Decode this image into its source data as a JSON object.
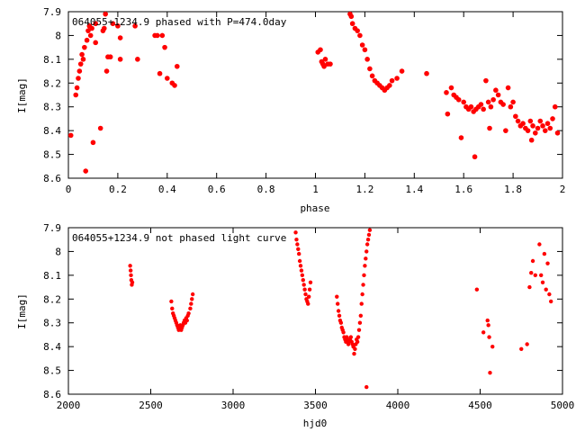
{
  "chart_data": [
    {
      "type": "scatter",
      "title": "064055+1234.9 phased with P=474.0day",
      "xlabel": "phase",
      "ylabel": "I[mag]",
      "xlim": [
        0,
        2
      ],
      "ylim": [
        8.6,
        7.9
      ],
      "y_axis_inverted": true,
      "xticks": [
        "0",
        "0.2",
        "0.4",
        "0.6",
        "0.8",
        "1",
        "1.2",
        "1.4",
        "1.6",
        "1.8",
        "2"
      ],
      "yticks": [
        "7.9",
        "8",
        "8.1",
        "8.2",
        "8.3",
        "8.4",
        "8.5",
        "8.6"
      ],
      "marker_color": "#ff0000",
      "grid": false,
      "points": [
        [
          0.01,
          8.42
        ],
        [
          0.03,
          8.25
        ],
        [
          0.035,
          8.22
        ],
        [
          0.04,
          8.18
        ],
        [
          0.045,
          8.15
        ],
        [
          0.05,
          8.12
        ],
        [
          0.055,
          8.08
        ],
        [
          0.06,
          8.1
        ],
        [
          0.065,
          8.05
        ],
        [
          0.07,
          8.57
        ],
        [
          0.075,
          8.02
        ],
        [
          0.08,
          7.98
        ],
        [
          0.085,
          7.96
        ],
        [
          0.09,
          8.0
        ],
        [
          0.095,
          7.97
        ],
        [
          0.1,
          8.45
        ],
        [
          0.11,
          7.95
        ],
        [
          0.11,
          8.03
        ],
        [
          0.13,
          8.39
        ],
        [
          0.14,
          7.98
        ],
        [
          0.145,
          7.97
        ],
        [
          0.15,
          7.91
        ],
        [
          0.155,
          8.15
        ],
        [
          0.16,
          8.09
        ],
        [
          0.17,
          8.09
        ],
        [
          0.18,
          7.95
        ],
        [
          0.2,
          7.96
        ],
        [
          0.21,
          8.01
        ],
        [
          0.21,
          8.1
        ],
        [
          0.27,
          7.96
        ],
        [
          0.28,
          8.1
        ],
        [
          0.35,
          8.0
        ],
        [
          0.36,
          8.0
        ],
        [
          0.37,
          8.16
        ],
        [
          0.38,
          8.0
        ],
        [
          0.39,
          8.05
        ],
        [
          0.4,
          8.18
        ],
        [
          0.42,
          8.2
        ],
        [
          0.43,
          8.21
        ],
        [
          0.44,
          8.13
        ],
        [
          1.01,
          8.07
        ],
        [
          1.02,
          8.06
        ],
        [
          1.025,
          8.11
        ],
        [
          1.03,
          8.12
        ],
        [
          1.035,
          8.13
        ],
        [
          1.04,
          8.1
        ],
        [
          1.05,
          8.12
        ],
        [
          1.06,
          8.12
        ],
        [
          1.14,
          7.91
        ],
        [
          1.145,
          7.92
        ],
        [
          1.15,
          7.95
        ],
        [
          1.16,
          7.97
        ],
        [
          1.17,
          7.98
        ],
        [
          1.18,
          8.0
        ],
        [
          1.19,
          8.04
        ],
        [
          1.2,
          8.06
        ],
        [
          1.21,
          8.1
        ],
        [
          1.22,
          8.14
        ],
        [
          1.23,
          8.17
        ],
        [
          1.24,
          8.19
        ],
        [
          1.25,
          8.2
        ],
        [
          1.26,
          8.21
        ],
        [
          1.27,
          8.22
        ],
        [
          1.28,
          8.23
        ],
        [
          1.29,
          8.22
        ],
        [
          1.3,
          8.21
        ],
        [
          1.31,
          8.19
        ],
        [
          1.33,
          8.18
        ],
        [
          1.35,
          8.15
        ],
        [
          1.45,
          8.16
        ],
        [
          1.53,
          8.24
        ],
        [
          1.535,
          8.33
        ],
        [
          1.55,
          8.22
        ],
        [
          1.56,
          8.25
        ],
        [
          1.57,
          8.26
        ],
        [
          1.58,
          8.27
        ],
        [
          1.59,
          8.43
        ],
        [
          1.6,
          8.28
        ],
        [
          1.61,
          8.3
        ],
        [
          1.62,
          8.31
        ],
        [
          1.63,
          8.3
        ],
        [
          1.64,
          8.32
        ],
        [
          1.645,
          8.51
        ],
        [
          1.65,
          8.31
        ],
        [
          1.66,
          8.3
        ],
        [
          1.67,
          8.29
        ],
        [
          1.68,
          8.31
        ],
        [
          1.69,
          8.19
        ],
        [
          1.7,
          8.28
        ],
        [
          1.705,
          8.39
        ],
        [
          1.71,
          8.3
        ],
        [
          1.72,
          8.27
        ],
        [
          1.73,
          8.23
        ],
        [
          1.74,
          8.25
        ],
        [
          1.75,
          8.28
        ],
        [
          1.76,
          8.29
        ],
        [
          1.77,
          8.4
        ],
        [
          1.78,
          8.22
        ],
        [
          1.79,
          8.3
        ],
        [
          1.8,
          8.28
        ],
        [
          1.81,
          8.34
        ],
        [
          1.82,
          8.36
        ],
        [
          1.83,
          8.38
        ],
        [
          1.84,
          8.37
        ],
        [
          1.85,
          8.39
        ],
        [
          1.86,
          8.4
        ],
        [
          1.87,
          8.36
        ],
        [
          1.875,
          8.44
        ],
        [
          1.88,
          8.38
        ],
        [
          1.89,
          8.41
        ],
        [
          1.9,
          8.39
        ],
        [
          1.91,
          8.36
        ],
        [
          1.92,
          8.38
        ],
        [
          1.93,
          8.4
        ],
        [
          1.94,
          8.37
        ],
        [
          1.95,
          8.39
        ],
        [
          1.96,
          8.35
        ],
        [
          1.97,
          8.3
        ],
        [
          1.98,
          8.41
        ]
      ]
    },
    {
      "type": "scatter",
      "title": "064055+1234.9 not phased light curve",
      "xlabel": "hjd0",
      "ylabel": "I[mag]",
      "xlim": [
        2000,
        5000
      ],
      "ylim": [
        8.6,
        7.9
      ],
      "y_axis_inverted": true,
      "xticks": [
        "2000",
        "2500",
        "3000",
        "3500",
        "4000",
        "4500",
        "5000"
      ],
      "yticks": [
        "7.9",
        "8",
        "8.1",
        "8.2",
        "8.3",
        "8.4",
        "8.5",
        "8.6"
      ],
      "marker_color": "#ff0000",
      "grid": false,
      "points": [
        [
          2375,
          8.06
        ],
        [
          2378,
          8.08
        ],
        [
          2380,
          8.1
        ],
        [
          2382,
          8.12
        ],
        [
          2385,
          8.14
        ],
        [
          2388,
          8.13
        ],
        [
          2625,
          8.21
        ],
        [
          2630,
          8.24
        ],
        [
          2635,
          8.26
        ],
        [
          2640,
          8.27
        ],
        [
          2645,
          8.28
        ],
        [
          2650,
          8.29
        ],
        [
          2655,
          8.3
        ],
        [
          2660,
          8.31
        ],
        [
          2665,
          8.32
        ],
        [
          2670,
          8.33
        ],
        [
          2675,
          8.32
        ],
        [
          2680,
          8.31
        ],
        [
          2685,
          8.33
        ],
        [
          2690,
          8.32
        ],
        [
          2695,
          8.31
        ],
        [
          2700,
          8.3
        ],
        [
          2705,
          8.29
        ],
        [
          2710,
          8.3
        ],
        [
          2715,
          8.28
        ],
        [
          2720,
          8.29
        ],
        [
          2725,
          8.27
        ],
        [
          2730,
          8.26
        ],
        [
          2740,
          8.24
        ],
        [
          2745,
          8.22
        ],
        [
          2750,
          8.2
        ],
        [
          2755,
          8.18
        ],
        [
          3380,
          7.92
        ],
        [
          3385,
          7.95
        ],
        [
          3390,
          7.97
        ],
        [
          3395,
          7.99
        ],
        [
          3400,
          8.01
        ],
        [
          3405,
          8.04
        ],
        [
          3410,
          8.06
        ],
        [
          3415,
          8.08
        ],
        [
          3420,
          8.1
        ],
        [
          3425,
          8.12
        ],
        [
          3430,
          8.14
        ],
        [
          3435,
          8.16
        ],
        [
          3440,
          8.18
        ],
        [
          3445,
          8.2
        ],
        [
          3450,
          8.21
        ],
        [
          3455,
          8.22
        ],
        [
          3460,
          8.19
        ],
        [
          3465,
          8.16
        ],
        [
          3470,
          8.13
        ],
        [
          3630,
          8.19
        ],
        [
          3635,
          8.22
        ],
        [
          3640,
          8.25
        ],
        [
          3645,
          8.27
        ],
        [
          3650,
          8.29
        ],
        [
          3655,
          8.3
        ],
        [
          3660,
          8.32
        ],
        [
          3665,
          8.33
        ],
        [
          3670,
          8.34
        ],
        [
          3675,
          8.36
        ],
        [
          3680,
          8.37
        ],
        [
          3685,
          8.38
        ],
        [
          3690,
          8.36
        ],
        [
          3695,
          8.37
        ],
        [
          3700,
          8.39
        ],
        [
          3705,
          8.38
        ],
        [
          3710,
          8.37
        ],
        [
          3715,
          8.36
        ],
        [
          3720,
          8.38
        ],
        [
          3725,
          8.39
        ],
        [
          3730,
          8.4
        ],
        [
          3735,
          8.43
        ],
        [
          3740,
          8.41
        ],
        [
          3745,
          8.39
        ],
        [
          3750,
          8.37
        ],
        [
          3755,
          8.38
        ],
        [
          3760,
          8.36
        ],
        [
          3765,
          8.33
        ],
        [
          3770,
          8.3
        ],
        [
          3775,
          8.27
        ],
        [
          3780,
          8.22
        ],
        [
          3785,
          8.18
        ],
        [
          3790,
          8.14
        ],
        [
          3795,
          8.1
        ],
        [
          3800,
          8.06
        ],
        [
          3805,
          8.03
        ],
        [
          3810,
          8.0
        ],
        [
          3815,
          7.97
        ],
        [
          3820,
          7.95
        ],
        [
          3825,
          7.93
        ],
        [
          3830,
          7.91
        ],
        [
          3810,
          8.57
        ],
        [
          4480,
          8.16
        ],
        [
          4520,
          8.34
        ],
        [
          4545,
          8.29
        ],
        [
          4550,
          8.31
        ],
        [
          4555,
          8.36
        ],
        [
          4560,
          8.51
        ],
        [
          4575,
          8.4
        ],
        [
          4750,
          8.41
        ],
        [
          4785,
          8.39
        ],
        [
          4800,
          8.15
        ],
        [
          4810,
          8.09
        ],
        [
          4820,
          8.04
        ],
        [
          4835,
          8.1
        ],
        [
          4860,
          7.97
        ],
        [
          4870,
          8.1
        ],
        [
          4880,
          8.13
        ],
        [
          4890,
          8.01
        ],
        [
          4900,
          8.16
        ],
        [
          4910,
          8.05
        ],
        [
          4920,
          8.18
        ],
        [
          4930,
          8.21
        ]
      ]
    }
  ]
}
